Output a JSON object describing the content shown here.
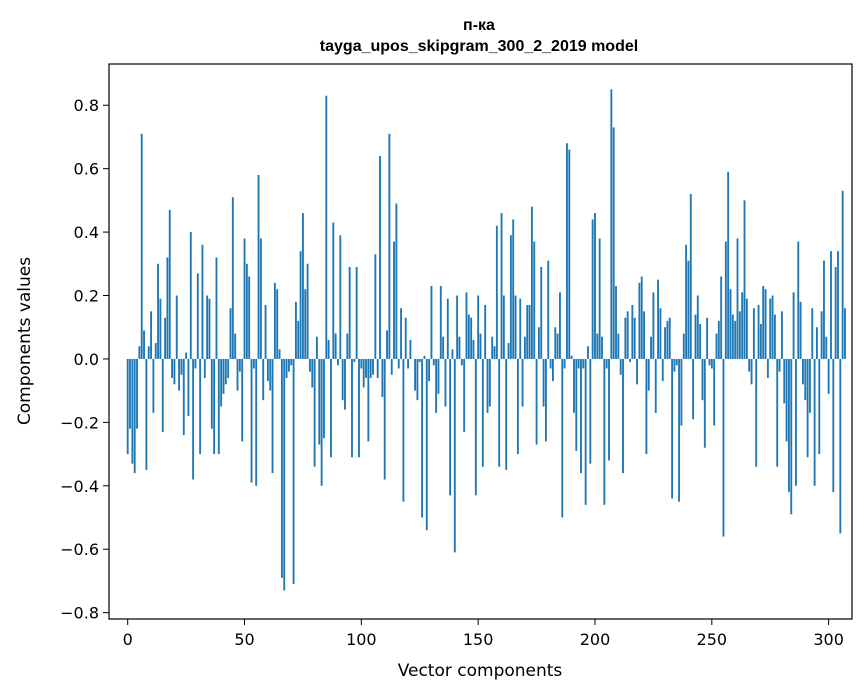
{
  "chart_data": {
    "type": "bar",
    "title": "п-ка",
    "subtitle": "tayga_upos_skipgram_300_2_2019 model",
    "xlabel": "Vector components",
    "ylabel": "Components values",
    "xlim": [
      -8,
      310
    ],
    "ylim": [
      -0.82,
      0.93
    ],
    "xticks": [
      0,
      50,
      100,
      150,
      200,
      250,
      300
    ],
    "yticks": [
      -0.8,
      -0.6,
      -0.4,
      -0.2,
      0.0,
      0.2,
      0.4,
      0.6,
      0.8
    ],
    "ytick_labels": [
      "−0.8",
      "−0.6",
      "−0.4",
      "−0.2",
      "0.0",
      "0.2",
      "0.4",
      "0.6",
      "0.8"
    ],
    "bar_color": "#1f77b4",
    "grid": false,
    "legend": "none",
    "values": [
      -0.3,
      -0.22,
      -0.33,
      -0.36,
      -0.22,
      0.04,
      0.71,
      0.09,
      -0.35,
      0.04,
      0.15,
      -0.17,
      0.05,
      0.3,
      0.19,
      -0.23,
      0.13,
      0.32,
      0.47,
      -0.06,
      -0.08,
      0.2,
      -0.1,
      -0.05,
      -0.24,
      0.02,
      -0.18,
      0.4,
      -0.38,
      -0.03,
      0.27,
      -0.3,
      0.36,
      -0.06,
      0.2,
      0.19,
      -0.22,
      -0.3,
      0.32,
      -0.3,
      -0.15,
      -0.11,
      -0.08,
      -0.06,
      0.16,
      0.51,
      0.08,
      -0.1,
      -0.04,
      -0.26,
      0.38,
      0.3,
      0.26,
      -0.39,
      -0.03,
      -0.4,
      0.58,
      0.38,
      -0.13,
      0.17,
      -0.07,
      -0.1,
      -0.36,
      0.24,
      0.22,
      0.03,
      -0.69,
      -0.73,
      -0.06,
      -0.04,
      -0.02,
      -0.71,
      0.18,
      0.12,
      0.34,
      0.46,
      0.22,
      0.3,
      -0.04,
      -0.09,
      -0.34,
      0.07,
      -0.27,
      -0.4,
      -0.25,
      0.83,
      0.06,
      -0.31,
      0.43,
      0.08,
      -0.02,
      0.39,
      -0.13,
      -0.16,
      0.08,
      0.29,
      -0.31,
      -0.01,
      0.29,
      -0.31,
      -0.03,
      -0.09,
      -0.06,
      -0.26,
      -0.06,
      -0.05,
      0.33,
      -0.06,
      0.64,
      -0.12,
      -0.38,
      0.09,
      0.71,
      -0.05,
      0.37,
      0.49,
      -0.03,
      0.16,
      -0.45,
      0.13,
      -0.03,
      0.06,
      0.0,
      -0.1,
      -0.13,
      -0.01,
      -0.5,
      0.01,
      -0.54,
      -0.07,
      0.23,
      -0.02,
      -0.17,
      -0.11,
      0.23,
      0.07,
      -0.15,
      0.19,
      -0.43,
      0.03,
      -0.61,
      0.2,
      0.07,
      -0.02,
      -0.23,
      0.21,
      0.14,
      0.13,
      0.06,
      -0.43,
      0.2,
      0.08,
      -0.34,
      0.17,
      -0.17,
      -0.15,
      0.07,
      0.04,
      0.42,
      -0.34,
      0.46,
      0.2,
      -0.35,
      0.05,
      0.39,
      0.44,
      0.2,
      -0.3,
      0.19,
      -0.15,
      0.07,
      0.17,
      0.17,
      0.48,
      0.37,
      -0.27,
      0.1,
      0.29,
      -0.15,
      -0.26,
      0.31,
      -0.03,
      -0.07,
      0.1,
      0.08,
      0.21,
      -0.5,
      -0.03,
      0.68,
      0.66,
      0.01,
      -0.17,
      -0.29,
      -0.03,
      -0.36,
      -0.03,
      -0.46,
      0.04,
      -0.33,
      0.44,
      0.46,
      0.08,
      0.38,
      0.07,
      -0.46,
      -0.03,
      -0.32,
      0.85,
      0.73,
      0.23,
      0.08,
      -0.05,
      -0.36,
      0.13,
      0.15,
      -0.01,
      0.17,
      0.13,
      -0.08,
      0.24,
      0.26,
      0.15,
      -0.3,
      -0.1,
      0.07,
      0.21,
      -0.17,
      0.25,
      0.16,
      -0.07,
      0.1,
      0.12,
      0.13,
      -0.44,
      -0.04,
      -0.02,
      -0.45,
      -0.21,
      0.08,
      0.36,
      0.31,
      0.52,
      -0.19,
      0.14,
      0.2,
      0.11,
      -0.13,
      -0.28,
      0.13,
      -0.02,
      -0.03,
      -0.21,
      0.08,
      0.12,
      0.26,
      -0.56,
      0.37,
      0.59,
      0.22,
      0.14,
      0.12,
      0.38,
      0.15,
      0.21,
      0.5,
      0.19,
      -0.04,
      -0.08,
      0.16,
      -0.34,
      0.17,
      0.11,
      0.23,
      0.22,
      -0.06,
      0.19,
      0.2,
      0.14,
      -0.34,
      -0.04,
      0.15,
      -0.14,
      -0.26,
      -0.42,
      -0.49,
      0.21,
      -0.4,
      0.37,
      0.18,
      -0.08,
      -0.13,
      -0.31,
      -0.17,
      0.16,
      -0.4,
      0.1,
      -0.3,
      0.15,
      0.31,
      0.07,
      -0.11,
      0.34,
      -0.42,
      0.29,
      0.34,
      -0.55,
      0.53,
      0.16
    ]
  }
}
